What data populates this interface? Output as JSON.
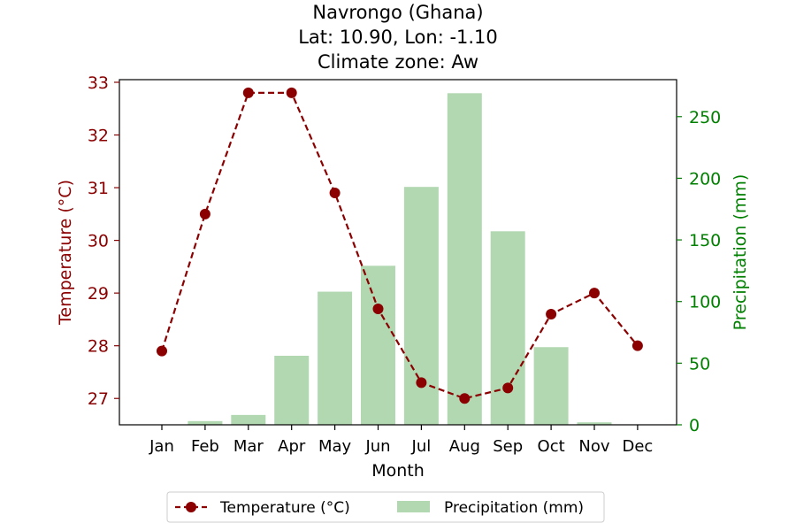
{
  "chart_data": {
    "type": "line+bar",
    "title_lines": [
      "Navrongo (Ghana)",
      "Lat: 10.90, Lon: -1.10",
      "Climate zone: Aw"
    ],
    "xlabel": "Month",
    "ylabel_left": "Temperature (°C)",
    "ylabel_right": "Precipitation (mm)",
    "categories": [
      "Jan",
      "Feb",
      "Mar",
      "Apr",
      "May",
      "Jun",
      "Jul",
      "Aug",
      "Sep",
      "Oct",
      "Nov",
      "Dec"
    ],
    "temperature": [
      27.9,
      30.5,
      32.8,
      32.8,
      30.9,
      28.7,
      27.3,
      27.0,
      27.2,
      28.6,
      29.0,
      28.0
    ],
    "precipitation": [
      0,
      3,
      8,
      56,
      108,
      129,
      193,
      269,
      157,
      63,
      2,
      0
    ],
    "ylim_left": [
      26.5,
      33.05
    ],
    "ylim_right": [
      0,
      280
    ],
    "yticks_left": [
      "27",
      "28",
      "29",
      "30",
      "31",
      "32",
      "33"
    ],
    "yticks_right": [
      "0",
      "50",
      "100",
      "150",
      "200",
      "250"
    ],
    "legend": [
      "Temperature (°C)",
      "Precipitation (mm)"
    ],
    "legend_position": "below-center",
    "colors": {
      "temperature": "#8b0000",
      "precipitation": "#b2d8b2",
      "left_axis": "#8b0000",
      "right_axis": "#008000"
    }
  }
}
